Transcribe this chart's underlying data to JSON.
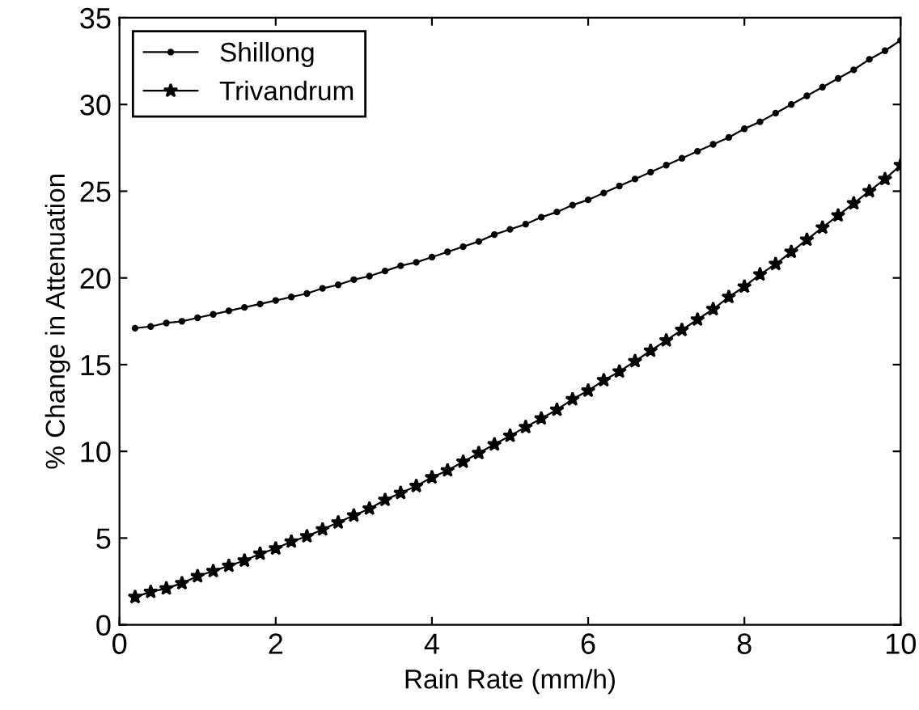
{
  "chart_data": {
    "type": "line",
    "xlabel": "Rain Rate (mm/h)",
    "ylabel": "% Change in Attenuation",
    "xlim": [
      0,
      10
    ],
    "ylim": [
      0,
      35
    ],
    "xticks": [
      0,
      2,
      4,
      6,
      8,
      10
    ],
    "yticks": [
      0,
      5,
      10,
      15,
      20,
      25,
      30,
      35
    ],
    "grid": false,
    "legend": "top left",
    "line_style": "solid",
    "x": [
      0.2,
      0.4,
      0.6,
      0.8,
      1.0,
      1.2,
      1.4,
      1.6,
      1.8,
      2.0,
      2.2,
      2.4,
      2.6,
      2.8,
      3.0,
      3.2,
      3.4,
      3.6,
      3.8,
      4.0,
      4.2,
      4.4,
      4.6,
      4.8,
      5.0,
      5.2,
      5.4,
      5.6,
      5.8,
      6.0,
      6.2,
      6.4,
      6.6,
      6.8,
      7.0,
      7.2,
      7.4,
      7.6,
      7.8,
      8.0,
      8.2,
      8.4,
      8.6,
      8.8,
      9.0,
      9.2,
      9.4,
      9.6,
      9.8,
      10.0
    ],
    "series": [
      {
        "name": "Shillong",
        "color": "#000000",
        "marker": "circle",
        "values": [
          17.1,
          17.2,
          17.4,
          17.5,
          17.7,
          17.9,
          18.1,
          18.3,
          18.5,
          18.7,
          18.9,
          19.1,
          19.4,
          19.6,
          19.9,
          20.1,
          20.4,
          20.7,
          20.9,
          21.2,
          21.5,
          21.8,
          22.1,
          22.5,
          22.8,
          23.1,
          23.5,
          23.8,
          24.2,
          24.5,
          24.9,
          25.3,
          25.7,
          26.1,
          26.5,
          26.9,
          27.3,
          27.7,
          28.1,
          28.6,
          29.0,
          29.5,
          30.0,
          30.5,
          31.0,
          31.5,
          32.0,
          32.6,
          33.1,
          33.7
        ]
      },
      {
        "name": "Trivandrum",
        "color": "#000000",
        "marker": "star",
        "values": [
          1.6,
          1.9,
          2.1,
          2.4,
          2.8,
          3.1,
          3.4,
          3.7,
          4.1,
          4.4,
          4.8,
          5.1,
          5.5,
          5.9,
          6.3,
          6.7,
          7.2,
          7.6,
          8.0,
          8.5,
          8.9,
          9.4,
          9.9,
          10.4,
          10.9,
          11.4,
          11.9,
          12.4,
          13.0,
          13.5,
          14.1,
          14.6,
          15.2,
          15.8,
          16.4,
          17.0,
          17.6,
          18.2,
          18.9,
          19.5,
          20.2,
          20.8,
          21.5,
          22.2,
          22.9,
          23.6,
          24.3,
          25.0,
          25.7,
          26.5
        ]
      }
    ]
  }
}
